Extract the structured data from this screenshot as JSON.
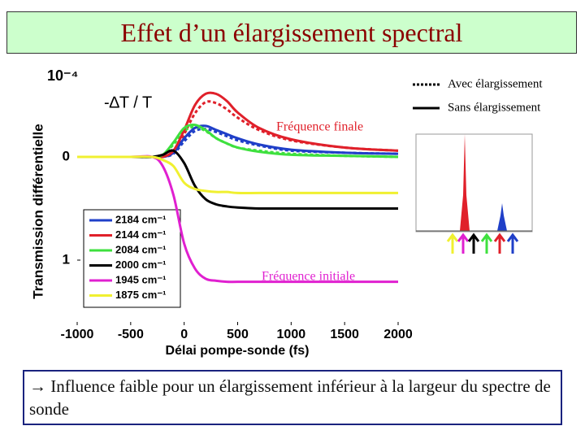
{
  "slide_title": "Effet d’un élargissement spectral",
  "footer": "→ Influence faible pour un élargissement inférieur  à la largeur du spectre de sonde",
  "chart_data": {
    "type": "line",
    "x_label": "Délai pompe-sonde (fs)",
    "y_label": "Transmission différentielle",
    "y_multiplier": "10⁻⁴",
    "annotations": [
      "-∆T / T",
      "Fréquence finale",
      "Fréquence initiale"
    ],
    "x": [
      -1000,
      -500,
      -300,
      -200,
      -100,
      0,
      100,
      200,
      300,
      400,
      500,
      700,
      1000,
      1500,
      2000
    ],
    "xlim": [
      -1000,
      2000
    ],
    "xticks": [
      -1000,
      -500,
      0,
      500,
      1000,
      1500,
      2000
    ],
    "ylim": [
      -0.85,
      1.63
    ],
    "y_inverted": true,
    "yticks": [
      0,
      1
    ],
    "line_styles": [
      {
        "label": "Avec élargissement",
        "dash": true
      },
      {
        "label": "Sans élargissement",
        "dash": false
      }
    ],
    "series": [
      {
        "name": "2184 cm⁻¹",
        "color": "#1f3fc8",
        "values": [
          0,
          0,
          0,
          0,
          -0.04,
          -0.18,
          -0.28,
          -0.3,
          -0.26,
          -0.22,
          -0.18,
          -0.12,
          -0.07,
          -0.04,
          -0.03
        ],
        "values_broadened": [
          0,
          0,
          0,
          0,
          -0.03,
          -0.15,
          -0.25,
          -0.27,
          -0.24,
          -0.2,
          -0.16,
          -0.11,
          -0.06,
          -0.04,
          -0.03
        ]
      },
      {
        "name": "2144 cm⁻¹",
        "color": "#e0202a",
        "values": [
          0,
          0,
          0,
          0,
          -0.06,
          -0.26,
          -0.5,
          -0.61,
          -0.61,
          -0.54,
          -0.43,
          -0.28,
          -0.17,
          -0.09,
          -0.06
        ],
        "values_broadened": [
          0,
          0,
          0,
          0,
          -0.05,
          -0.22,
          -0.42,
          -0.53,
          -0.52,
          -0.46,
          -0.38,
          -0.26,
          -0.16,
          -0.09,
          -0.06
        ]
      },
      {
        "name": "2084 cm⁻¹",
        "color": "#3ee03e",
        "values": [
          0,
          0,
          0,
          -0.02,
          -0.14,
          -0.28,
          -0.31,
          -0.26,
          -0.18,
          -0.13,
          -0.09,
          -0.05,
          -0.02,
          -0.01,
          0
        ],
        "values_broadened": [
          0,
          0,
          0,
          -0.02,
          -0.12,
          -0.25,
          -0.29,
          -0.25,
          -0.18,
          -0.13,
          -0.09,
          -0.06,
          -0.03,
          -0.01,
          0
        ]
      },
      {
        "name": "2000 cm⁻¹",
        "color": "#000000",
        "values": [
          0,
          0,
          0,
          -0.02,
          -0.06,
          0.06,
          0.28,
          0.41,
          0.46,
          0.48,
          0.49,
          0.5,
          0.5,
          0.5,
          0.5
        ]
      },
      {
        "name": "1945 cm⁻¹",
        "color": "#e020d0",
        "values": [
          0,
          0,
          0,
          0.09,
          0.37,
          0.84,
          1.08,
          1.18,
          1.2,
          1.21,
          1.21,
          1.21,
          1.21,
          1.21,
          1.21
        ]
      },
      {
        "name": "1875 cm⁻¹",
        "color": "#f0f030",
        "values": [
          0,
          0,
          0,
          0.03,
          0.09,
          0.25,
          0.31,
          0.33,
          0.34,
          0.34,
          0.35,
          0.35,
          0.35,
          0.35,
          0.35
        ]
      }
    ]
  }
}
